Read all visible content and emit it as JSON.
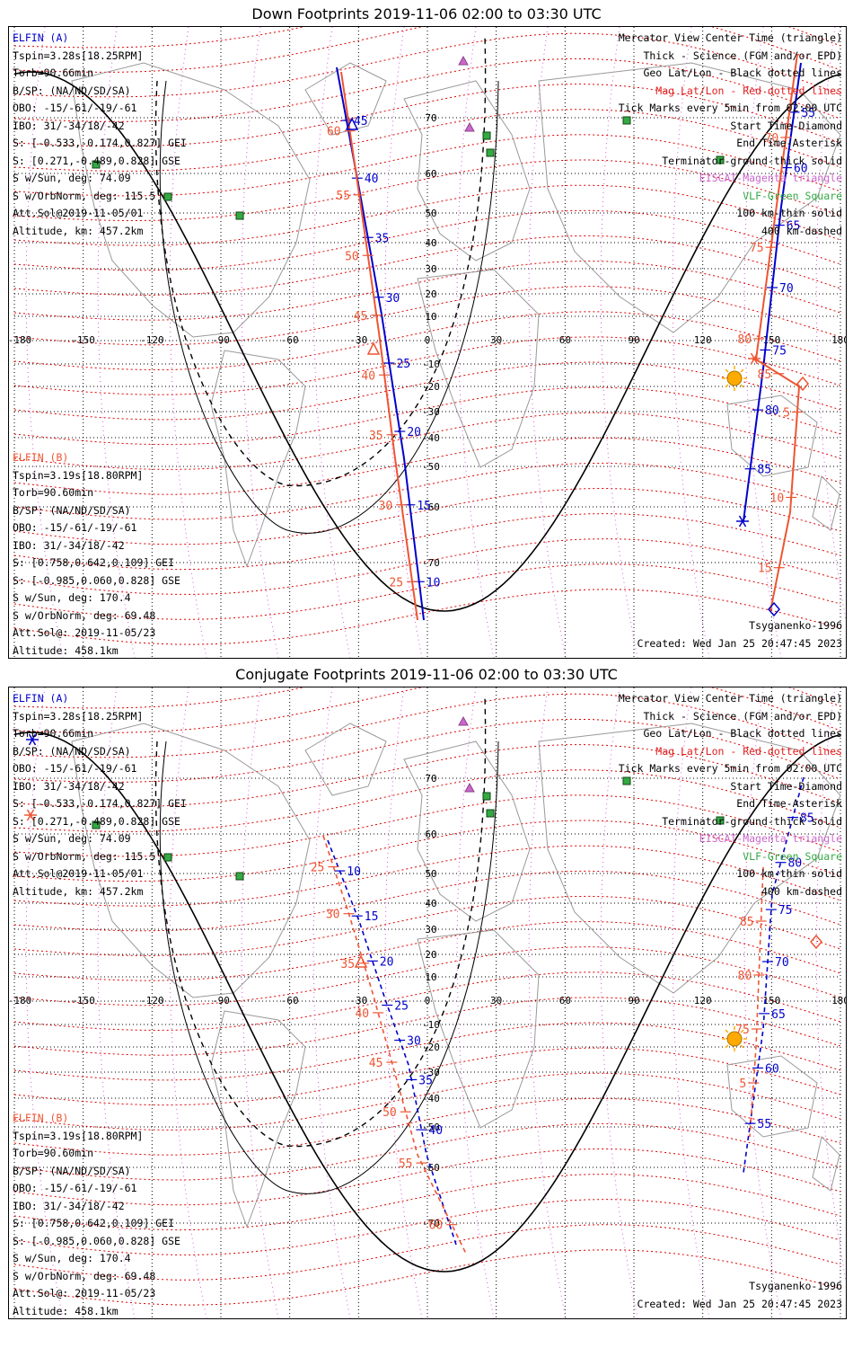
{
  "panels": [
    {
      "title": "Down Footprints 2019-11-06 02:00 to 03:30 UTC",
      "sc_a": {
        "name": "ELFIN (A)",
        "lines": [
          "Tspin=3.28s[18.25RPM]",
          "Torb=90.66min",
          "B/SP: (NA/ND/SD/SA)",
          "OBO: -15/-61/-19/-61",
          "IBO: 31/-34/18/-42",
          "S: [-0.533,-0.174,0.827] GEI",
          "S: [0.271,-0.489,0.828] GSE",
          "S w/Sun, deg: 74.09",
          "S w/OrbNorm, deg: 115.5",
          "Att.Sol@2019-11-05/01",
          "Altitude, km: 457.2km"
        ]
      },
      "sc_b": {
        "name": "ELFIN (B)",
        "lines": [
          "Tspin=3.19s[18.80RPM]",
          "Torb=90.60min",
          "B/SP: (NA/ND/SD/SA)",
          "OBO: -15/-61/-19/-61",
          "IBO: 31/-34/18/-42",
          "S: [0.758,0.642,0.109] GEI",
          "S: [-0.985,0.060,0.828] GSE",
          "S w/Sun, deg: 170.4",
          "S w/OrbNorm, deg: 69.48",
          "Att.Sol@: 2019-11-05/23",
          "Altitude: 458.1km"
        ]
      },
      "legend": [
        "Mercator View Center Time (triangle)",
        "Thick - Science (FGM and/or EPD)",
        "Geo Lat/Lon - Black dotted lines",
        "Mag Lat/Lon - Red dotted lines",
        "Tick Marks every 5min from 02:00 UTC",
        "Start Time-Diamond",
        "End Time-Asterisk",
        "Terminator-ground-thick solid",
        "EISCAT-Magenta triangle",
        "VLF-Green Square",
        "100 km-thin solid",
        "400 km-dashed"
      ],
      "model": "Tsyganenko-1996",
      "created": "Created: Wed Jan 25 20:47:45 2023"
    },
    {
      "title": "Conjugate Footprints 2019-11-06 02:00 to 03:30 UTC",
      "sc_a": {
        "name": "ELFIN (A)",
        "lines": [
          "Tspin=3.28s[18.25RPM]",
          "Torb=90.66min",
          "B/SP: (NA/ND/SD/SA)",
          "OBO: -15/-61/-19/-61",
          "IBO: 31/-34/18/-42",
          "S: [-0.533,-0.174,0.827] GEI",
          "S: [0.271,-0.489,0.828] GSE",
          "S w/Sun, deg: 74.09",
          "S w/OrbNorm, deg: 115.5",
          "Att.Sol@2019-11-05/01",
          "Altitude, km: 457.2km"
        ]
      },
      "sc_b": {
        "name": "ELFIN (B)",
        "lines": [
          "Tspin=3.19s[18.80RPM]",
          "Torb=90.60min",
          "B/SP: (NA/ND/SD/SA)",
          "OBO: -15/-61/-19/-61",
          "IBO: 31/-34/18/-42",
          "S: [0.758,0.642,0.109] GEI",
          "S: [-0.985,0.060,0.828] GSE",
          "S w/Sun, deg: 170.4",
          "S w/OrbNorm, deg: 69.48",
          "Att.Sol@: 2019-11-05/23",
          "Altitude: 458.1km"
        ]
      },
      "legend": [
        "Mercator View Center Time (triangle)",
        "Thick - Science (FGM and/or EPD)",
        "Geo Lat/Lon - Black dotted lines",
        "Mag Lat/Lon - Red dotted lines",
        "Tick Marks every 5min from 02:00 UTC",
        "Start Time-Diamond",
        "End Time-Asterisk",
        "Terminator-ground-thick solid",
        "EISCAT-Magenta triangle",
        "VLF-Green Square",
        "100 km-thin solid",
        "400 km-dashed"
      ],
      "model": "Tsyganenko-1996",
      "created": "Created: Wed Jan 25 20:47:45 2023"
    }
  ],
  "map": {
    "lon_ticks": [
      "-180",
      "-150",
      "-120",
      "-90",
      "-60",
      "-30",
      "0",
      "30",
      "60",
      "90",
      "120",
      "150",
      "180"
    ],
    "lat_ticks": [
      "70",
      "60",
      "50",
      "40",
      "30",
      "20",
      "10",
      "0",
      "-10",
      "-20",
      "-30",
      "-40",
      "-50",
      "-60",
      "-70"
    ],
    "lon_range": [
      -180,
      180
    ],
    "colors": {
      "elfin_a": "#0000cc",
      "elfin_b": "#ee5533",
      "terminator": "#000000",
      "mag_grid": "#dd0000",
      "geo_grid": "#000000",
      "eiscat": "#cc66cc",
      "vlf": "#33aa44",
      "sun": "#ffaa00"
    }
  },
  "down_tracks": {
    "elfin_a_main": {
      "ticks": [
        "45",
        "40",
        "35",
        "30",
        "25",
        "20",
        "15",
        "10"
      ]
    },
    "elfin_b_main": {
      "ticks": [
        "60",
        "55",
        "50",
        "45",
        "40",
        "35",
        "30",
        "25"
      ]
    },
    "elfin_a_east": {
      "ticks": [
        "55",
        "60",
        "65",
        "70",
        "75",
        "80",
        "85"
      ]
    },
    "elfin_b_east": {
      "ticks": [
        "70",
        "75",
        "80",
        "85",
        "5",
        "10",
        "15"
      ]
    }
  },
  "conj_tracks": {
    "elfin_a_main": {
      "ticks": [
        "10",
        "15",
        "20",
        "25",
        "30",
        "35",
        "40"
      ]
    },
    "elfin_b_main": {
      "ticks": [
        "25",
        "30",
        "35",
        "40",
        "45",
        "50",
        "55",
        "60"
      ]
    },
    "elfin_a_east": {
      "ticks": [
        "85",
        "80",
        "75",
        "70",
        "65",
        "60",
        "55"
      ]
    },
    "elfin_b_east": {
      "ticks": [
        "85",
        "80",
        "75",
        "5"
      ]
    }
  }
}
